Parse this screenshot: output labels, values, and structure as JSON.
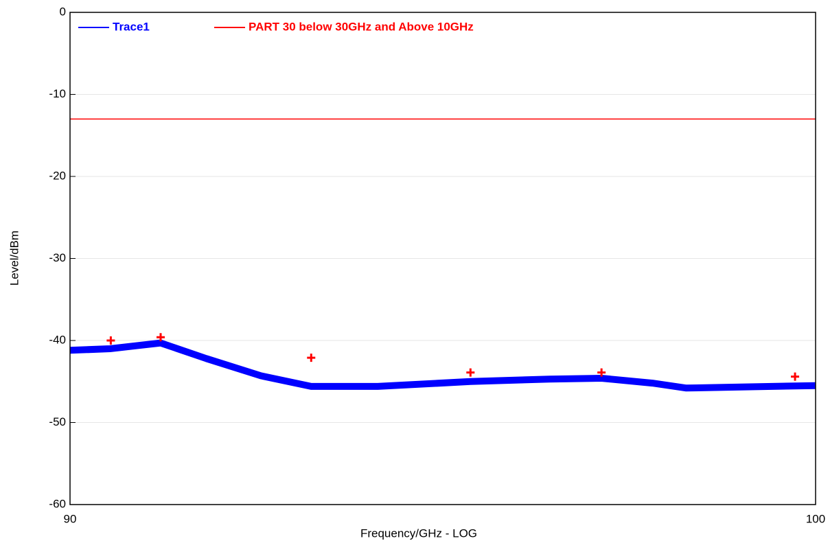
{
  "chart_data": {
    "type": "line",
    "xlabel": "Frequency/GHz - LOG",
    "ylabel": "Level/dBm",
    "xscale": "log",
    "xlim": [
      90,
      100
    ],
    "xticks": [
      90,
      100
    ],
    "ylim": [
      -60,
      0
    ],
    "yticks": [
      0,
      -10,
      -20,
      -30,
      -40,
      -50,
      -60
    ],
    "grid": true,
    "legend": "top-left",
    "series": [
      {
        "name": "Trace1",
        "color": "#0000ff",
        "x": [
          90,
          90.51,
          91.16,
          91.75,
          92.46,
          93.12,
          94.0,
          95.24,
          96.31,
          97.02,
          97.72,
          98.19,
          98.77,
          100
        ],
        "values": [
          -41.2,
          -41.0,
          -40.3,
          -42.2,
          -44.3,
          -45.6,
          -45.6,
          -45.0,
          -44.7,
          -44.6,
          -45.2,
          -45.8,
          -45.7,
          -45.5
        ]
      },
      {
        "name": "PART 30 below 30GHz and Above 10GHz",
        "color": "#ff0000",
        "x": [
          90,
          100
        ],
        "values": [
          -13,
          -13
        ]
      }
    ],
    "markers": {
      "color": "#ff0000",
      "x": [
        90.52,
        91.16,
        93.12,
        95.24,
        97.02,
        99.71
      ],
      "values": [
        -40.0,
        -39.6,
        -42.1,
        -43.9,
        -43.9,
        -44.4
      ]
    }
  }
}
